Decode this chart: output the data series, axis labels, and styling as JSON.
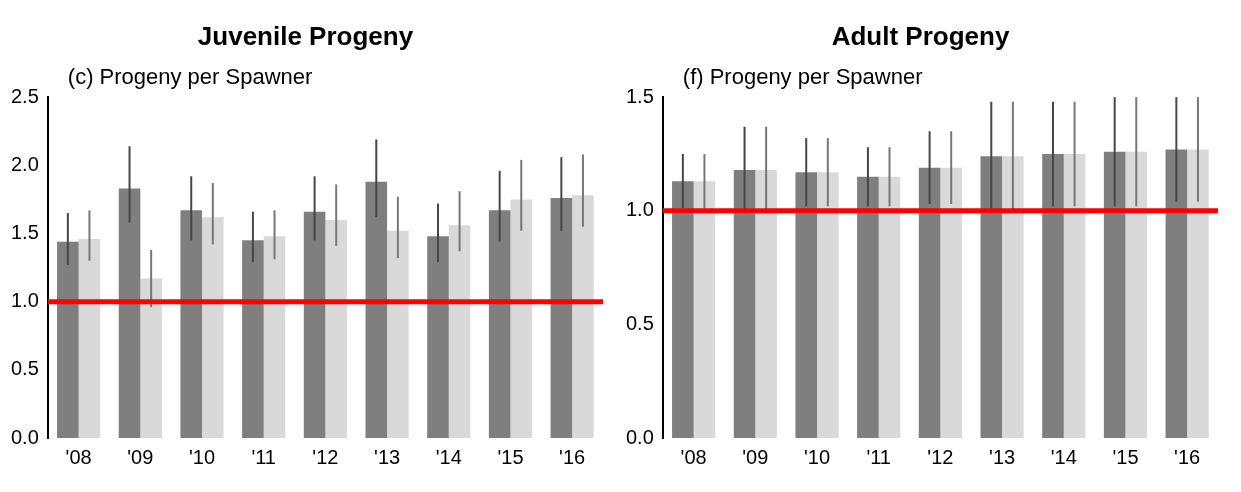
{
  "chart_data": [
    {
      "type": "bar",
      "title": "Juvenile Progeny",
      "annotations": [
        "(c) Progeny per Spawner"
      ],
      "categories": [
        "'08",
        "'09",
        "'10",
        "'11",
        "'12",
        "'13",
        "'14",
        "'15",
        "'16"
      ],
      "series": [
        {
          "color": "#7f7f7f",
          "values": [
            1.44,
            1.83,
            1.67,
            1.45,
            1.66,
            1.88,
            1.48,
            1.67,
            1.76
          ],
          "errors": [
            [
              1.27,
              1.65
            ],
            [
              1.58,
              2.14
            ],
            [
              1.45,
              1.92
            ],
            [
              1.29,
              1.66
            ],
            [
              1.45,
              1.92
            ],
            [
              1.62,
              2.19
            ],
            [
              1.29,
              1.72
            ],
            [
              1.44,
              1.96
            ],
            [
              1.52,
              2.06
            ]
          ]
        },
        {
          "color": "#d9d9d9",
          "values": [
            1.46,
            1.17,
            1.62,
            1.48,
            1.6,
            1.52,
            1.56,
            1.75,
            1.78
          ],
          "errors": [
            [
              1.3,
              1.67
            ],
            [
              0.96,
              1.38
            ],
            [
              1.42,
              1.87
            ],
            [
              1.31,
              1.67
            ],
            [
              1.41,
              1.86
            ],
            [
              1.32,
              1.77
            ],
            [
              1.37,
              1.81
            ],
            [
              1.52,
              2.04
            ],
            [
              1.55,
              2.08
            ]
          ]
        }
      ],
      "ylim": [
        0,
        2.5
      ],
      "yticks": [
        {
          "value": 0,
          "label": "0.0"
        },
        0.5,
        {
          "value": 1,
          "label": "1.0"
        },
        1.5,
        {
          "value": 2,
          "label": "2.0"
        },
        2.5
      ],
      "grid": false,
      "legend": false,
      "ref_lines": [
        {
          "axis": "y",
          "value": 1,
          "color": "#ff0000"
        }
      ]
    },
    {
      "type": "bar",
      "title": "Adult Progeny",
      "annotations": [
        "(f) Progeny per Spawner"
      ],
      "categories": [
        "'08",
        "'09",
        "'10",
        "'11",
        "'12",
        "'13",
        "'14",
        "'15",
        "'16"
      ],
      "series": [
        {
          "color": "#7f7f7f",
          "values": [
            1.13,
            1.18,
            1.17,
            1.15,
            1.19,
            1.24,
            1.25,
            1.26,
            1.27
          ],
          "errors": [
            0.12,
            0.19,
            0.15,
            0.13,
            0.16,
            0.24,
            0.23,
            0.24,
            0.23
          ]
        },
        {
          "color": "#d9d9d9",
          "values": [
            1.13,
            1.18,
            1.17,
            1.15,
            1.19,
            1.24,
            1.25,
            1.26,
            1.27
          ],
          "errors": [
            0.12,
            0.19,
            0.15,
            0.13,
            0.16,
            0.24,
            0.23,
            0.24,
            0.23
          ]
        }
      ],
      "ylim": [
        0,
        1.5
      ],
      "yticks": [
        {
          "value": 0,
          "label": "0.0"
        },
        0.5,
        {
          "value": 1,
          "label": "1.0"
        },
        1.5
      ],
      "grid": false,
      "legend": false,
      "ref_lines": [
        {
          "axis": "y",
          "value": 1,
          "color": "#ff0000"
        }
      ]
    }
  ]
}
